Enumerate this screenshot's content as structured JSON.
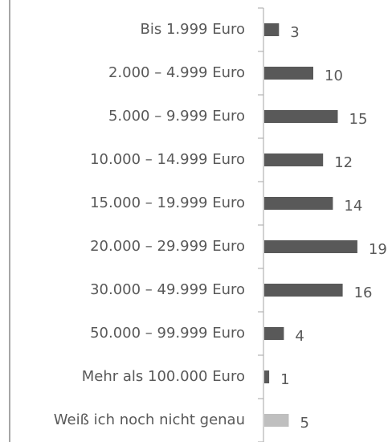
{
  "chart_data": {
    "type": "bar",
    "orientation": "horizontal",
    "categories": [
      "Bis 1.999 Euro",
      "2.000 – 4.999 Euro",
      "5.000 – 9.999 Euro",
      "10.000 – 14.999 Euro",
      "15.000 – 19.999 Euro",
      "20.000 – 29.999 Euro",
      "30.000 – 49.999 Euro",
      "50.000 – 99.999 Euro",
      "Mehr als 100.000 Euro",
      "Weiß ich noch nicht genau"
    ],
    "values": [
      3,
      10,
      15,
      12,
      14,
      19,
      16,
      4,
      1,
      5
    ],
    "colors": [
      "#595959",
      "#595959",
      "#595959",
      "#595959",
      "#595959",
      "#595959",
      "#595959",
      "#595959",
      "#595959",
      "#bfbfbf"
    ]
  }
}
